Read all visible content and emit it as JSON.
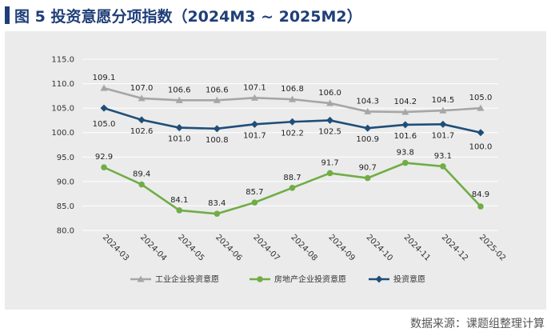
{
  "title": "图 5  投资意愿分项指数（2024M3 ~ 2025M2）",
  "source": "数据来源：课题组整理计算",
  "colors": {
    "title": "#1f3e78",
    "background": "#ebebeb",
    "series_industrial": "#a6a6a6",
    "series_realestate": "#70ad47",
    "series_investment": "#1f4e79"
  },
  "chart_data": {
    "type": "line",
    "title": "图 5  投资意愿分项指数（2024M3 ~ 2025M2）",
    "xlabel": "",
    "ylabel": "",
    "ylim": [
      80,
      115
    ],
    "yticks": [
      "80.0",
      "85.0",
      "90.0",
      "95.0",
      "100.0",
      "105.0",
      "110.0",
      "115.0"
    ],
    "grid": true,
    "legend_position": "bottom",
    "categories": [
      "2024-03",
      "2024-04",
      "2024-05",
      "2024-06",
      "2024-07",
      "2024-08",
      "2024-09",
      "2024-10",
      "2024-11",
      "2024-12",
      "2025-02"
    ],
    "series": [
      {
        "name": "工业企业投资意愿",
        "key": "industrial",
        "marker": "triangle",
        "values": [
          109.1,
          107.0,
          106.6,
          106.6,
          107.1,
          106.8,
          106.0,
          104.3,
          104.2,
          104.5,
          105.0
        ],
        "labels": [
          "109.1",
          "107.0",
          "106.6",
          "106.6",
          "107.1",
          "106.8",
          "106.0",
          "104.3",
          "104.2",
          "104.5",
          "105.0"
        ]
      },
      {
        "name": "房地产企业投资意愿",
        "key": "realestate",
        "marker": "circle",
        "values": [
          92.9,
          89.4,
          84.1,
          83.4,
          85.7,
          88.7,
          91.7,
          90.7,
          93.8,
          93.1,
          84.9
        ],
        "labels": [
          "92.9",
          "89.4",
          "84.1",
          "83.4",
          "85.7",
          "88.7",
          "91.7",
          "90.7",
          "93.8",
          "93.1",
          "84.9"
        ]
      },
      {
        "name": "投资意愿",
        "key": "investment",
        "marker": "diamond",
        "values": [
          105.0,
          102.6,
          101.0,
          100.8,
          101.7,
          102.2,
          102.5,
          100.9,
          101.6,
          101.7,
          100.0
        ],
        "labels": [
          "105.0",
          "102.6",
          "101.0",
          "100.8",
          "101.7",
          "102.2",
          "102.5",
          "100.9",
          "101.6",
          "101.7",
          "100.0"
        ]
      }
    ]
  }
}
